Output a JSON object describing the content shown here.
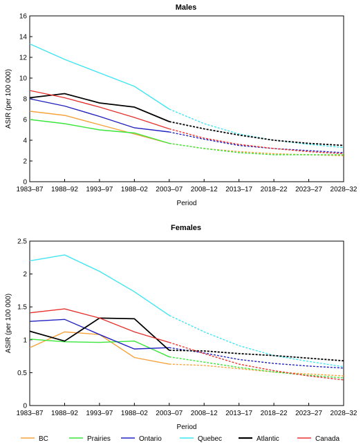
{
  "chart_data": [
    {
      "type": "line",
      "title": "Males",
      "xlabel": "Period",
      "ylabel": "ASIR (per 100 000)",
      "categories": [
        "1983–87",
        "1988–92",
        "1993–97",
        "1988–02",
        "2003–07",
        "2008–12",
        "2013–17",
        "2018–22",
        "2023–27",
        "2028–32"
      ],
      "ylim": [
        0,
        16
      ],
      "yticks": [
        "0",
        "2",
        "4",
        "6",
        "8",
        "10",
        "12",
        "14",
        "16"
      ],
      "observed_through_index": 4,
      "series": [
        {
          "name": "BC",
          "color": "#f7a13a",
          "values": [
            6.8,
            6.4,
            5.5,
            4.6,
            3.7,
            3.2,
            2.9,
            2.7,
            2.6,
            2.5
          ]
        },
        {
          "name": "Prairies",
          "color": "#39e63a",
          "values": [
            6.0,
            5.6,
            5.0,
            4.7,
            3.7,
            3.2,
            2.8,
            2.6,
            2.6,
            2.6
          ]
        },
        {
          "name": "Ontario",
          "color": "#2020c0",
          "values": [
            8.0,
            7.3,
            6.3,
            5.2,
            4.8,
            4.1,
            3.5,
            3.2,
            3.0,
            2.8
          ]
        },
        {
          "name": "Quebec",
          "color": "#3fe6f2",
          "values": [
            13.3,
            11.8,
            10.5,
            9.2,
            7.0,
            5.6,
            4.6,
            4.0,
            3.6,
            3.3
          ]
        },
        {
          "name": "Atlantic",
          "color": "#000000",
          "values": [
            8.1,
            8.5,
            7.6,
            7.2,
            5.8,
            5.1,
            4.5,
            4.0,
            3.7,
            3.5
          ]
        },
        {
          "name": "Canada",
          "color": "#e8302c",
          "values": [
            8.8,
            8.1,
            7.2,
            6.2,
            5.1,
            4.2,
            3.6,
            3.2,
            2.9,
            2.7
          ]
        }
      ]
    },
    {
      "type": "line",
      "title": "Females",
      "xlabel": "Period",
      "ylabel": "ASIR (per 100 000)",
      "categories": [
        "1983–87",
        "1988–92",
        "1993–97",
        "1988–02",
        "2003–07",
        "2008–12",
        "2013–17",
        "2018–22",
        "2023–27",
        "2028–32"
      ],
      "ylim": [
        0,
        2.5
      ],
      "yticks": [
        "0",
        "0.5",
        "1",
        "1.5",
        "2",
        "2.5"
      ],
      "observed_through_index": 4,
      "series": [
        {
          "name": "BC",
          "color": "#f7a13a",
          "values": [
            0.88,
            1.12,
            1.08,
            0.73,
            0.63,
            0.61,
            0.56,
            0.51,
            0.48,
            0.45
          ]
        },
        {
          "name": "Prairies",
          "color": "#39e63a",
          "values": [
            1.01,
            0.97,
            0.96,
            0.98,
            0.74,
            0.66,
            0.58,
            0.51,
            0.46,
            0.42
          ]
        },
        {
          "name": "Ontario",
          "color": "#2020c0",
          "values": [
            1.28,
            1.31,
            1.08,
            0.86,
            0.88,
            0.8,
            0.7,
            0.64,
            0.6,
            0.57
          ]
        },
        {
          "name": "Quebec",
          "color": "#3fe6f2",
          "values": [
            2.2,
            2.29,
            2.04,
            1.73,
            1.37,
            1.12,
            0.91,
            0.76,
            0.67,
            0.59
          ]
        },
        {
          "name": "Atlantic",
          "color": "#000000",
          "values": [
            1.13,
            0.98,
            1.33,
            1.32,
            0.84,
            0.83,
            0.79,
            0.76,
            0.72,
            0.68
          ]
        },
        {
          "name": "Canada",
          "color": "#e8302c",
          "values": [
            1.41,
            1.47,
            1.33,
            1.12,
            0.96,
            0.79,
            0.63,
            0.53,
            0.45,
            0.39
          ]
        }
      ]
    }
  ],
  "legend": [
    {
      "label": "BC",
      "color": "#f7a13a"
    },
    {
      "label": "Prairies",
      "color": "#39e63a"
    },
    {
      "label": "Ontario",
      "color": "#2020c0"
    },
    {
      "label": "Quebec",
      "color": "#3fe6f2"
    },
    {
      "label": "Atlantic",
      "color": "#000000"
    },
    {
      "label": "Canada",
      "color": "#e8302c"
    }
  ]
}
